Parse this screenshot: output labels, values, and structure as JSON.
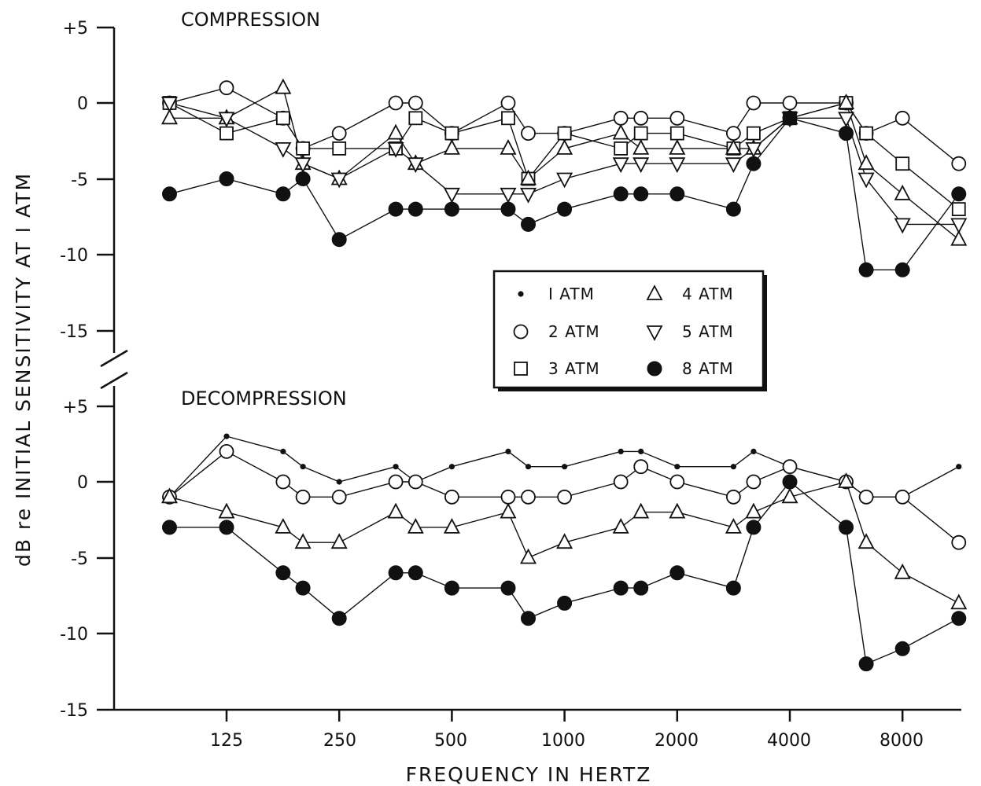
{
  "chart_data": [
    {
      "type": "line",
      "title": "COMPRESSION",
      "ylabel": "dB re INITIAL SENSITIVITY AT I ATM",
      "xlabel": "FREQUENCY IN HERTZ",
      "ylim": [
        -15,
        5
      ],
      "yticks": [
        "+5",
        "0",
        "-5",
        "-10",
        "-15"
      ],
      "x_tick_labels": [
        "125",
        "250",
        "500",
        "1000",
        "2000",
        "4000",
        "8000"
      ],
      "x": [
        88,
        125,
        177,
        200,
        250,
        354,
        400,
        500,
        707,
        800,
        1000,
        1414,
        1600,
        2000,
        2828,
        3200,
        4000,
        5656,
        6400,
        8000,
        11312
      ],
      "grid": false,
      "series": [
        {
          "name": "2 ATM",
          "marker": "open-circle",
          "values": [
            0,
            1,
            -1,
            -3,
            -2,
            0,
            0,
            -2,
            0,
            -2,
            -2,
            -1,
            -1,
            -1,
            -2,
            0,
            0,
            0,
            -2,
            -1,
            -4
          ]
        },
        {
          "name": "3 ATM",
          "marker": "open-square",
          "values": [
            0,
            -2,
            -1,
            -3,
            -3,
            -3,
            -1,
            -2,
            -1,
            -5,
            -2,
            -3,
            -2,
            -2,
            -3,
            -2,
            -1,
            0,
            -2,
            -4,
            -7
          ]
        },
        {
          "name": "4 ATM",
          "marker": "open-triangle-up",
          "values": [
            -1,
            -1,
            1,
            -4,
            -5,
            -2,
            -4,
            -3,
            -3,
            -5,
            -3,
            -2,
            -3,
            -3,
            -3,
            -3,
            -1,
            0,
            -4,
            -6,
            -9
          ]
        },
        {
          "name": "5 ATM",
          "marker": "open-triangle-down",
          "values": [
            0,
            -1,
            -3,
            -4,
            -5,
            -3,
            -4,
            -6,
            -6,
            -6,
            -5,
            -4,
            -4,
            -4,
            -4,
            -3,
            -1,
            -1,
            -5,
            -8,
            -8
          ]
        },
        {
          "name": "8 ATM",
          "marker": "filled-circle",
          "values": [
            -6,
            -5,
            -6,
            -5,
            -9,
            -7,
            -7,
            -7,
            -7,
            -8,
            -7,
            -6,
            -6,
            -6,
            -7,
            -4,
            -1,
            -2,
            -11,
            -11,
            -6
          ]
        }
      ]
    },
    {
      "type": "line",
      "title": "DECOMPRESSION",
      "ylim": [
        -15,
        5
      ],
      "yticks": [
        "+5",
        "0",
        "-5",
        "-10",
        "-15"
      ],
      "x_tick_labels": [
        "125",
        "250",
        "500",
        "1000",
        "2000",
        "4000",
        "8000"
      ],
      "x": [
        88,
        125,
        177,
        200,
        250,
        354,
        400,
        500,
        707,
        800,
        1000,
        1414,
        1600,
        2000,
        2828,
        3200,
        4000,
        5656,
        6400,
        8000,
        11312
      ],
      "grid": false,
      "series": [
        {
          "name": "1 ATM",
          "marker": "small-dot",
          "values": [
            -1,
            3,
            2,
            1,
            0,
            1,
            0,
            1,
            2,
            1,
            1,
            2,
            2,
            1,
            1,
            2,
            1,
            0,
            -1,
            -1,
            1
          ]
        },
        {
          "name": "2 ATM",
          "marker": "open-circle",
          "values": [
            -1,
            2,
            0,
            -1,
            -1,
            0,
            0,
            -1,
            -1,
            -1,
            -1,
            0,
            1,
            0,
            -1,
            0,
            1,
            0,
            -1,
            -1,
            -4
          ]
        },
        {
          "name": "4 ATM",
          "marker": "open-triangle-up",
          "values": [
            -1,
            -2,
            -3,
            -4,
            -4,
            -2,
            -3,
            -3,
            -2,
            -5,
            -4,
            -3,
            -2,
            -2,
            -3,
            -2,
            -1,
            0,
            -4,
            -6,
            -8
          ]
        },
        {
          "name": "8 ATM",
          "marker": "filled-circle",
          "values": [
            -3,
            -3,
            -6,
            -7,
            -9,
            -6,
            -6,
            -7,
            -7,
            -9,
            -8,
            -7,
            -7,
            -6,
            -7,
            -3,
            0,
            -3,
            -12,
            -11,
            -9
          ]
        }
      ]
    }
  ],
  "legend": {
    "placement": "center-right, between panels",
    "entries": [
      {
        "marker": "small-dot",
        "label": "I ATM"
      },
      {
        "marker": "open-triangle-up",
        "label": "4 ATM"
      },
      {
        "marker": "open-circle",
        "label": "2 ATM"
      },
      {
        "marker": "open-triangle-down",
        "label": "5 ATM"
      },
      {
        "marker": "open-square",
        "label": "3 ATM"
      },
      {
        "marker": "filled-circle",
        "label": "8 ATM"
      }
    ]
  }
}
